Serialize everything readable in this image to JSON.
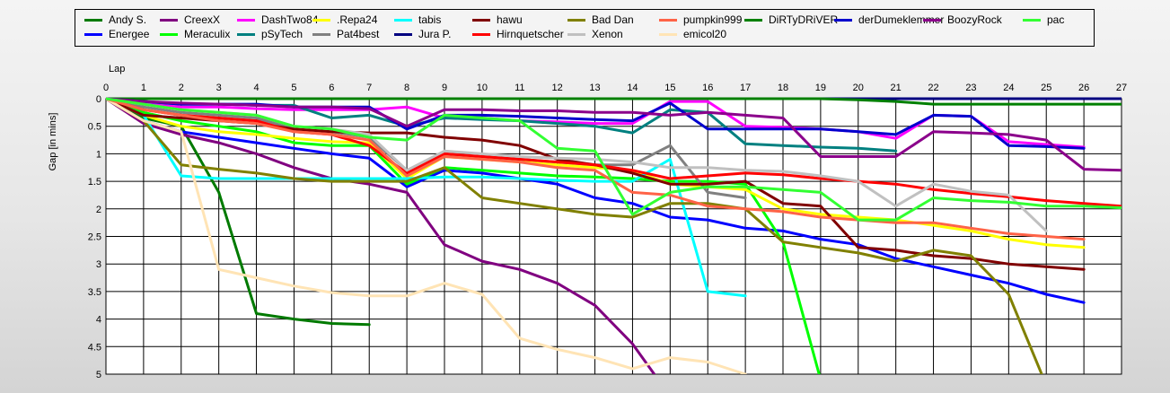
{
  "chart_data": {
    "type": "line",
    "xlabel": "Lap",
    "ylabel": "Gap [in mins]",
    "x_axis_position": "top",
    "y_axis_inverted": true,
    "xlim": [
      0,
      27
    ],
    "ylim": [
      0,
      5
    ],
    "x_ticks": [
      "0",
      "1",
      "2",
      "3",
      "4",
      "5",
      "6",
      "7",
      "8",
      "9",
      "10",
      "11",
      "12",
      "13",
      "14",
      "15",
      "16",
      "17",
      "18",
      "19",
      "20",
      "21",
      "22",
      "23",
      "24",
      "25",
      "26",
      "27"
    ],
    "y_ticks": [
      "0",
      "0.5",
      "1",
      "1.5",
      "2",
      "2.5",
      "3",
      "3.5",
      "4",
      "4.5",
      "5"
    ],
    "grid": true,
    "legend_placement": "top",
    "series": [
      {
        "name": "Andy S.",
        "color": "#007a00",
        "values": [
          0,
          0.35,
          0.5,
          1.7,
          3.9,
          4.0,
          4.08,
          4.1
        ]
      },
      {
        "name": "Energee",
        "color": "#0000ff",
        "values": [
          0,
          0.4,
          0.6,
          0.7,
          0.8,
          0.9,
          1.0,
          1.08,
          1.6,
          1.3,
          1.35,
          1.45,
          1.55,
          1.8,
          1.9,
          2.15,
          2.2,
          2.35,
          2.4,
          2.55,
          2.65,
          2.9,
          3.05,
          3.2,
          3.35,
          3.55,
          3.7
        ]
      },
      {
        "name": "CreexX",
        "color": "#800080",
        "values": [
          0,
          0.45,
          0.65,
          0.8,
          1.0,
          1.25,
          1.45,
          1.55,
          1.7,
          2.65,
          2.95,
          3.1,
          3.35,
          3.75,
          4.45,
          5.4
        ]
      },
      {
        "name": "Meraculix",
        "color": "#00ff00",
        "values": [
          0,
          0.25,
          0.4,
          0.5,
          0.6,
          0.8,
          0.85,
          0.85,
          1.55,
          1.25,
          1.3,
          1.35,
          1.4,
          1.42,
          1.45,
          1.5,
          1.5,
          1.55,
          2.6,
          5.1
        ]
      },
      {
        "name": "DashTwo84",
        "color": "#ff00ff",
        "values": [
          0,
          0.1,
          0.15,
          0.15,
          0.18,
          0.2,
          0.2,
          0.2,
          0.15,
          0.35,
          0.35,
          0.4,
          0.42,
          0.45,
          0.45,
          0.05,
          0.05,
          0.5,
          0.52,
          0.55,
          0.6,
          0.72,
          0.3,
          0.32,
          0.78,
          0.83,
          0.88
        ]
      },
      {
        "name": "pSyTech",
        "color": "#008080",
        "values": [
          0,
          0.05,
          0.1,
          0.1,
          0.12,
          0.12,
          0.35,
          0.3,
          0.5,
          0.35,
          0.38,
          0.4,
          0.45,
          0.5,
          0.62,
          0.2,
          0.25,
          0.82,
          0.85,
          0.88,
          0.9,
          0.95
        ]
      },
      {
        "name": ".Repa24",
        "color": "#ffff00",
        "values": [
          0,
          0.3,
          0.5,
          0.6,
          0.65,
          0.72,
          0.78,
          0.8,
          1.45,
          1.05,
          1.1,
          1.15,
          1.2,
          1.25,
          1.3,
          1.55,
          1.6,
          1.65,
          2.0,
          2.1,
          2.15,
          2.2,
          2.3,
          2.4,
          2.55,
          2.65,
          2.7
        ]
      },
      {
        "name": "Pat4best",
        "color": "#808080",
        "values": [
          0,
          0.15,
          0.25,
          0.3,
          0.35,
          0.55,
          0.6,
          0.7,
          1.3,
          1.0,
          1.05,
          1.1,
          1.15,
          1.2,
          1.2,
          0.85,
          1.7,
          1.8
        ]
      },
      {
        "name": "tabis",
        "color": "#00ffff",
        "values": [
          0,
          0.3,
          1.4,
          1.45,
          1.45,
          1.45,
          1.45,
          1.45,
          1.45,
          1.42,
          1.42,
          1.45,
          1.48,
          1.5,
          1.5,
          1.1,
          3.5,
          3.58
        ]
      },
      {
        "name": "Jura P.",
        "color": "#000080",
        "values": [
          0,
          0,
          0,
          0,
          0,
          0,
          0,
          0,
          0,
          0,
          0,
          0,
          0,
          0,
          0,
          0,
          0,
          0,
          0,
          0,
          0,
          0,
          0,
          0,
          0,
          0,
          0,
          0
        ]
      },
      {
        "name": "hawu",
        "color": "#800000",
        "values": [
          0,
          0.3,
          0.35,
          0.4,
          0.45,
          0.55,
          0.6,
          0.62,
          0.62,
          0.7,
          0.75,
          0.85,
          1.1,
          1.2,
          1.35,
          1.55,
          1.55,
          1.5,
          1.9,
          1.95,
          2.7,
          2.75,
          2.85,
          2.9,
          3.0,
          3.05,
          3.1
        ]
      },
      {
        "name": "Hirnquetscher",
        "color": "#ff0000",
        "values": [
          0,
          0.2,
          0.3,
          0.35,
          0.4,
          0.6,
          0.65,
          0.85,
          1.35,
          1.0,
          1.05,
          1.1,
          1.15,
          1.2,
          1.3,
          1.45,
          1.4,
          1.35,
          1.38,
          1.45,
          1.5,
          1.55,
          1.65,
          1.72,
          1.78,
          1.85,
          1.9,
          1.95
        ]
      },
      {
        "name": "Bad Dan",
        "color": "#808000",
        "values": [
          0,
          0.4,
          1.2,
          1.28,
          1.35,
          1.45,
          1.5,
          1.5,
          1.5,
          1.25,
          1.8,
          1.9,
          2.0,
          2.1,
          2.15,
          1.9,
          1.9,
          2.0,
          2.6,
          2.7,
          2.8,
          2.95,
          2.75,
          2.85,
          3.55,
          5.2
        ]
      },
      {
        "name": "Xenon",
        "color": "#c0c0c0",
        "values": [
          0,
          0.1,
          0.2,
          0.25,
          0.3,
          0.5,
          0.55,
          0.65,
          1.3,
          0.95,
          1.0,
          1.05,
          1.08,
          1.1,
          1.15,
          1.25,
          1.25,
          1.3,
          1.32,
          1.4,
          1.5,
          1.95,
          1.55,
          1.68,
          1.75,
          2.4
        ]
      },
      {
        "name": "emicol20",
        "color": "#ffe4b5",
        "values": [
          0,
          0.4,
          0.6,
          3.1,
          3.25,
          3.4,
          3.52,
          3.58,
          3.58,
          3.35,
          3.55,
          4.35,
          4.55,
          4.7,
          4.9,
          4.7,
          4.78,
          5.0
        ]
      },
      {
        "name": "pumpkin999",
        "color": "#ff6347",
        "values": [
          0,
          0.2,
          0.3,
          0.4,
          0.45,
          0.6,
          0.65,
          0.75,
          1.4,
          1.05,
          1.1,
          1.15,
          1.25,
          1.3,
          1.7,
          1.75,
          1.95,
          2.0,
          2.05,
          2.15,
          2.2,
          2.25,
          2.25,
          2.35,
          2.45,
          2.5,
          2.55
        ]
      },
      {
        "name": "DiRTyDRiVER",
        "color": "#008000",
        "values": [
          0,
          0,
          0,
          0,
          0,
          0,
          0,
          0,
          0,
          0,
          0,
          0,
          0,
          0,
          0,
          0,
          0,
          0,
          0,
          0,
          0.02,
          0.05,
          0.1,
          0.1,
          0.1,
          0.1,
          0.1,
          0.1
        ]
      },
      {
        "name": "derDumeklemmer",
        "color": "#0000cd",
        "values": [
          0,
          0.05,
          0.1,
          0.1,
          0.1,
          0.15,
          0.15,
          0.15,
          0.55,
          0.3,
          0.3,
          0.32,
          0.35,
          0.38,
          0.4,
          0.08,
          0.55,
          0.55,
          0.55,
          0.55,
          0.6,
          0.65,
          0.3,
          0.32,
          0.85,
          0.87,
          0.9
        ]
      },
      {
        "name": "BoozyRock",
        "color": "#8b008b",
        "values": [
          0,
          0.05,
          0.08,
          0.1,
          0.12,
          0.15,
          0.15,
          0.18,
          0.5,
          0.2,
          0.2,
          0.22,
          0.22,
          0.25,
          0.25,
          0.3,
          0.25,
          0.3,
          0.35,
          1.05,
          1.05,
          1.05,
          0.6,
          0.62,
          0.65,
          0.75,
          1.28,
          1.3
        ]
      },
      {
        "name": "pac",
        "color": "#32ff32",
        "values": [
          0,
          0.1,
          0.2,
          0.25,
          0.3,
          0.5,
          0.55,
          0.7,
          0.75,
          0.3,
          0.35,
          0.4,
          0.9,
          0.95,
          2.1,
          1.7,
          1.6,
          1.6,
          1.65,
          1.7,
          2.2,
          2.2,
          1.8,
          1.85,
          1.88,
          1.95,
          1.95,
          1.98
        ]
      }
    ]
  }
}
